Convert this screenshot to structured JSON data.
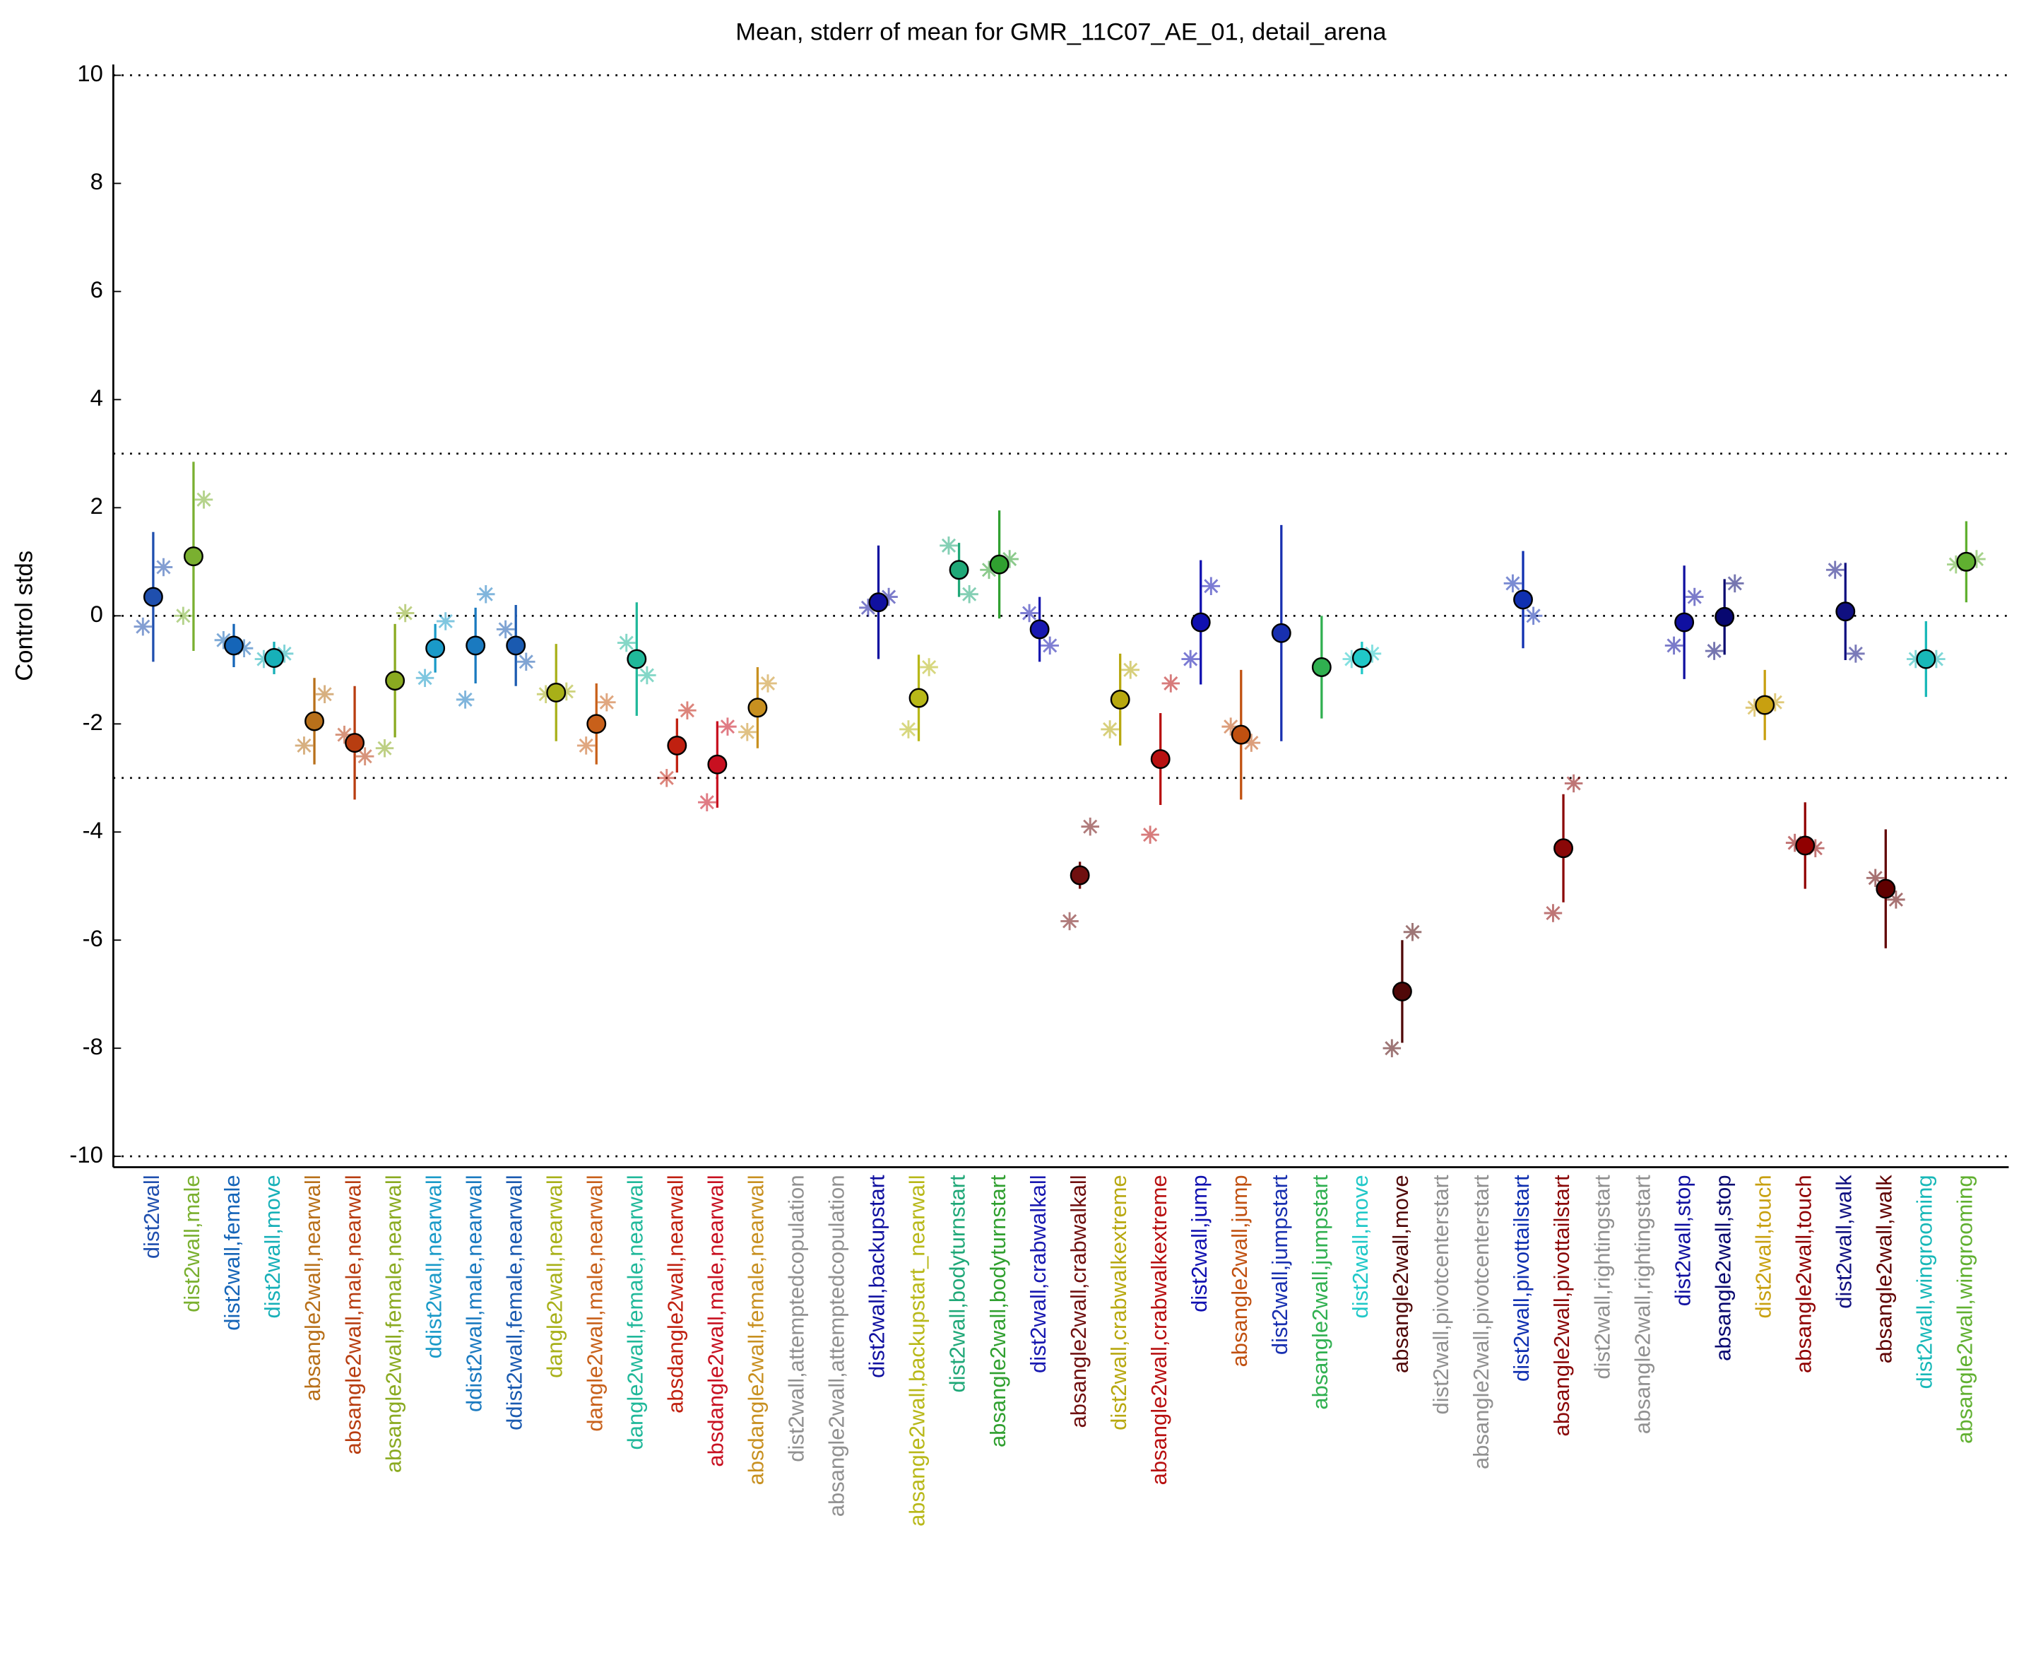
{
  "chart_data": {
    "type": "errorbar",
    "title": "Mean, stderr of mean for GMR_11C07_AE_01, detail_arena",
    "y_label": "Control stds",
    "ylim": [
      -10.2,
      10.2
    ],
    "yticks": [
      -10,
      -8,
      -6,
      -4,
      -2,
      0,
      2,
      4,
      6,
      8,
      10
    ],
    "hlines": [
      10,
      3,
      0,
      -3,
      -10
    ],
    "categories": [
      "dist2wall",
      "dist2wall,male",
      "dist2wall,female",
      "dist2wall,move",
      "absangle2wall,nearwall",
      "absangle2wall,male,nearwall",
      "absangle2wall,female,nearwall",
      "ddist2wall,nearwall",
      "ddist2wall,male,nearwall",
      "ddist2wall,female,nearwall",
      "dangle2wall,nearwall",
      "dangle2wall,male,nearwall",
      "dangle2wall,female,nearwall",
      "absdangle2wall,nearwall",
      "absdangle2wall,male,nearwall",
      "absdangle2wall,female,nearwall",
      "dist2wall,attemptedcopulation",
      "absangle2wall,attemptedcopulation",
      "dist2wall,backupstart",
      "absangle2wall,backupstart_nearwall",
      "dist2wall,bodyturnstart",
      "absangle2wall,bodyturnstart",
      "dist2wall,crabwalkall",
      "absangle2wall,crabwalkall",
      "dist2wall,crabwalkextreme",
      "absangle2wall,crabwalkextreme",
      "dist2wall,jump",
      "absangle2wall,jump",
      "dist2wall,jumpstart",
      "absangle2wall,jumpstart",
      "dist2wall,move",
      "absangle2wall,move",
      "dist2wall,pivotcenterstart",
      "absangle2wall,pivotcenterstart",
      "dist2wall,pivottailstart",
      "absangle2wall,pivottailstart",
      "dist2wall,rightingstart",
      "absangle2wall,rightingstart",
      "dist2wall,stop",
      "absangle2wall,stop",
      "dist2wall,touch",
      "absangle2wall,touch",
      "dist2wall,walk",
      "absangle2wall,walk",
      "dist2wall,wingrooming",
      "absangle2wall,wingrooming"
    ],
    "colors": [
      "#1f4fae",
      "#7ab030",
      "#1565b8",
      "#17b0b8",
      "#b8701a",
      "#b83d10",
      "#8aaa20",
      "#1a9ac8",
      "#1a7ac0",
      "#1a5ab0",
      "#a8b018",
      "#c8601a",
      "#20b89a",
      "#c02010",
      "#c81020",
      "#c89020",
      "#909090",
      "#909090",
      "#1010a0",
      "#b8b818",
      "#20a878",
      "#30a030",
      "#1818b0",
      "#701010",
      "#b8a810",
      "#b81010",
      "#1010b0",
      "#c05010",
      "#1830b0",
      "#30b050",
      "#20c8c8",
      "#500808",
      "#909090",
      "#909090",
      "#1030b0",
      "#8a0808",
      "#909090",
      "#909090",
      "#1010a0",
      "#080870",
      "#c8a010",
      "#900000",
      "#101080",
      "#600000",
      "#18b8b8",
      "#60b030"
    ],
    "values": [
      0.35,
      1.1,
      -0.55,
      -0.78,
      -1.95,
      -2.35,
      -1.2,
      -0.6,
      -0.55,
      -0.55,
      -1.42,
      -2.0,
      -0.8,
      -2.4,
      -2.75,
      -1.7,
      null,
      null,
      0.25,
      -1.52,
      0.85,
      0.95,
      -0.25,
      -4.8,
      -1.55,
      -2.65,
      -0.12,
      -2.2,
      -0.32,
      -0.95,
      -0.78,
      -6.95,
      null,
      null,
      0.3,
      -4.3,
      null,
      null,
      -0.12,
      -0.02,
      -1.65,
      -4.25,
      0.08,
      -5.05,
      -0.8,
      1.0
    ],
    "errors": [
      1.2,
      1.75,
      0.4,
      0.3,
      0.8,
      1.05,
      1.05,
      0.45,
      0.7,
      0.75,
      0.9,
      0.75,
      1.05,
      0.5,
      0.8,
      0.75,
      null,
      null,
      1.05,
      0.8,
      0.5,
      1.0,
      0.6,
      0.25,
      0.85,
      0.85,
      1.15,
      1.2,
      2.0,
      0.95,
      0.3,
      0.95,
      null,
      null,
      0.9,
      1.0,
      null,
      null,
      1.05,
      0.7,
      0.65,
      0.8,
      0.9,
      1.1,
      0.7,
      0.75
    ],
    "male": [
      -0.2,
      0.0,
      -0.45,
      -0.8,
      -2.4,
      -2.2,
      -2.45,
      -1.15,
      -1.55,
      -0.25,
      -1.45,
      -2.4,
      -0.5,
      -3.0,
      -3.45,
      -2.15,
      null,
      null,
      0.15,
      -2.1,
      1.3,
      0.85,
      0.05,
      -5.65,
      -2.1,
      -4.05,
      -0.8,
      -2.05,
      null,
      null,
      -0.8,
      -8.0,
      null,
      null,
      0.6,
      -5.5,
      null,
      null,
      -0.55,
      -0.65,
      -1.7,
      -4.2,
      0.85,
      -4.85,
      -0.8,
      0.95
    ],
    "female": [
      0.9,
      2.15,
      -0.6,
      -0.7,
      -1.45,
      -2.6,
      0.05,
      -0.1,
      0.4,
      -0.85,
      -1.4,
      -1.6,
      -1.1,
      -1.75,
      -2.05,
      -1.25,
      null,
      null,
      0.35,
      -0.95,
      0.4,
      1.05,
      -0.55,
      -3.9,
      -1.0,
      -1.25,
      0.55,
      -2.35,
      null,
      null,
      -0.7,
      -5.85,
      null,
      null,
      0.0,
      -3.1,
      null,
      null,
      0.35,
      0.6,
      -1.6,
      -4.3,
      -0.7,
      -5.25,
      -0.8,
      1.05
    ]
  }
}
